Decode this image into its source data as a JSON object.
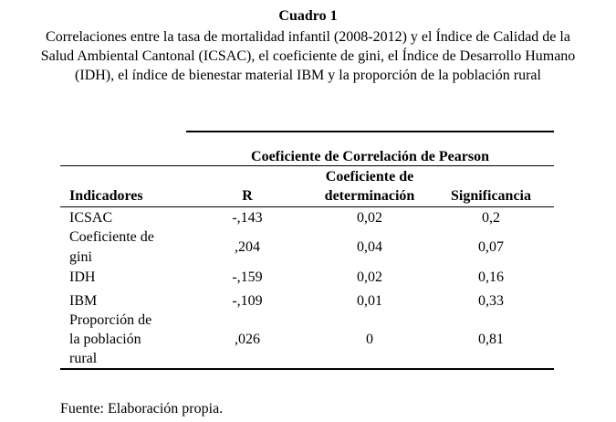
{
  "title": "Cuadro 1",
  "caption": {
    "line1": "Correlaciones entre la tasa de mortalidad infantil (2008-2012) y el Índice de Calidad de la",
    "line2": "Salud Ambiental Cantonal (ICSAC), el coeficiente de gini, el Índice de Desarrollo Humano",
    "line3": "(IDH), el índice de bienestar material IBM y la proporción de la población rural"
  },
  "table": {
    "group_header": "Coeficiente de Correlación de Pearson",
    "headers": {
      "indicadores": "Indicadores",
      "r": "R",
      "coef_line1": "Coeficiente de",
      "coef_line2": "determinación",
      "significancia": "Significancia"
    },
    "rows": [
      {
        "label": [
          "ICSAC"
        ],
        "r": "-,143",
        "coef": "0,02",
        "sig": "0,2"
      },
      {
        "label": [
          "Coeficiente de",
          "gini"
        ],
        "r": ",204",
        "coef": "0,04",
        "sig": "0,07"
      },
      {
        "label": [
          "IDH"
        ],
        "r": "-,159",
        "coef": "0,02",
        "sig": "0,16"
      },
      {
        "label": [
          "IBM"
        ],
        "r": "-,109",
        "coef": "0,01",
        "sig": "0,33"
      },
      {
        "label": [
          "Proporción de",
          "la población",
          "rural"
        ],
        "r": ",026",
        "coef": "0",
        "sig": "0,81"
      }
    ]
  },
  "source_note": "Fuente: Elaboración propia."
}
